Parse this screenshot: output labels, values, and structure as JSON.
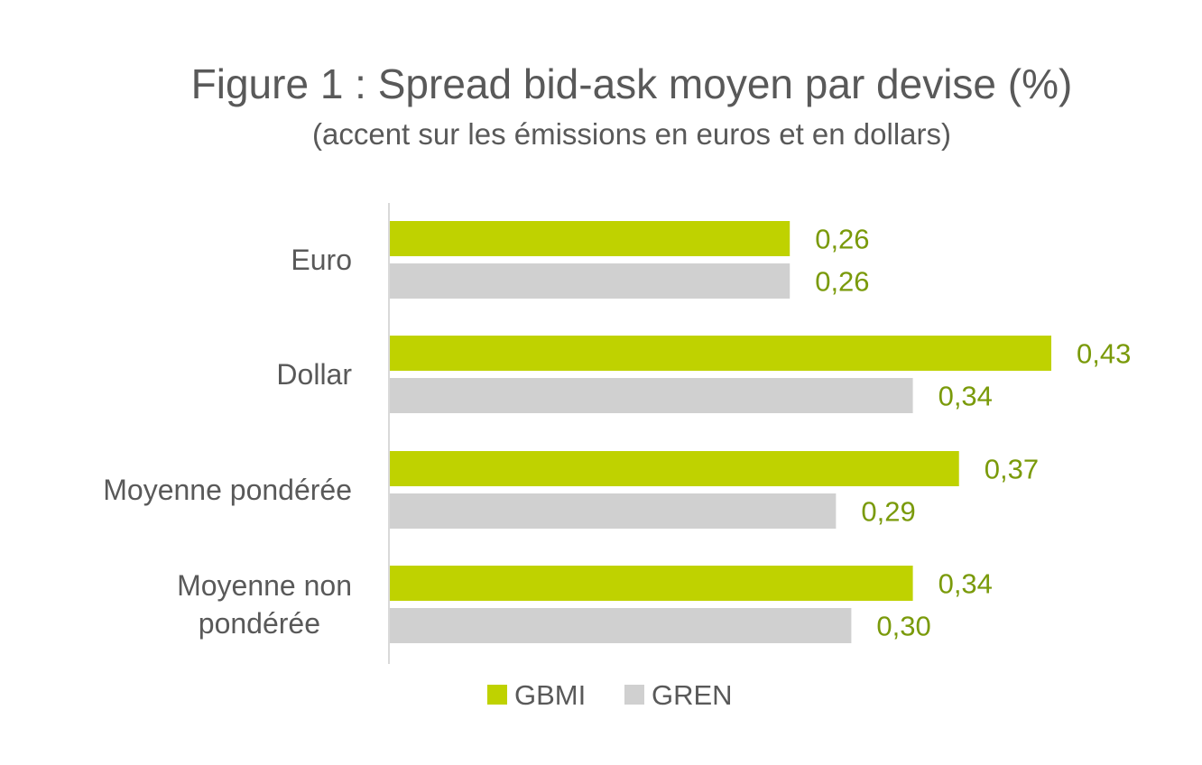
{
  "chart_data": {
    "type": "bar",
    "orientation": "horizontal",
    "title": "Figure 1 : Spread bid-ask moyen par devise (%)",
    "subtitle": "(accent sur les émissions en euros et en dollars)",
    "categories": [
      [
        "Euro"
      ],
      [
        "Dollar"
      ],
      [
        "Moyenne pondérée"
      ],
      [
        "Moyenne non",
        "pondérée"
      ]
    ],
    "series": [
      {
        "name": "GBMI",
        "color": "#bfd200",
        "values": [
          0.26,
          0.43,
          0.37,
          0.34
        ],
        "labels": [
          "0,26",
          "0,43",
          "0,37",
          "0,34"
        ]
      },
      {
        "name": "GREN",
        "color": "#d0d0d0",
        "values": [
          0.26,
          0.34,
          0.29,
          0.3
        ],
        "labels": [
          "0,26",
          "0,34",
          "0,29",
          "0,30"
        ]
      }
    ],
    "label_color": "#7a9a0a",
    "axis_color": "#d9d9d9",
    "xlim": [
      0,
      0.43
    ],
    "grid": false,
    "legend": "bottom"
  }
}
